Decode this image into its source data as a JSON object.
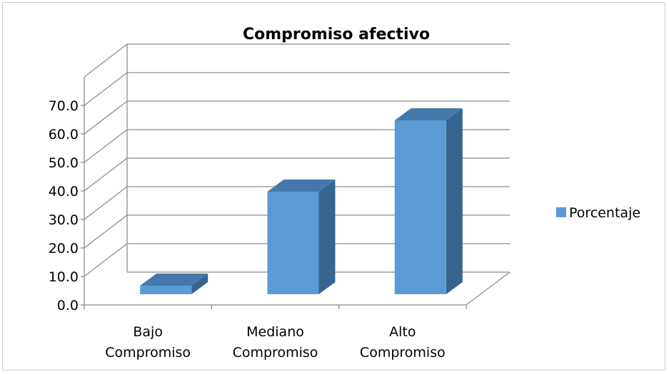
{
  "chart_data": {
    "type": "bar",
    "title": "Compromiso afectivo",
    "categories": [
      [
        "Bajo",
        "Compromiso"
      ],
      [
        "Mediano",
        "Compromiso"
      ],
      [
        "Alto",
        "Compromiso"
      ]
    ],
    "series": [
      {
        "name": "Porcentaje",
        "values": [
          3.0,
          36.0,
          61.0
        ],
        "color": "#5b9bd5"
      }
    ],
    "yticks": [
      "0.0",
      "10.0",
      "20.0",
      "30.0",
      "40.0",
      "50.0",
      "60.0",
      "70.0"
    ],
    "ylim": [
      0,
      70
    ],
    "grid": true,
    "legend": "right",
    "style": "3d-column"
  }
}
